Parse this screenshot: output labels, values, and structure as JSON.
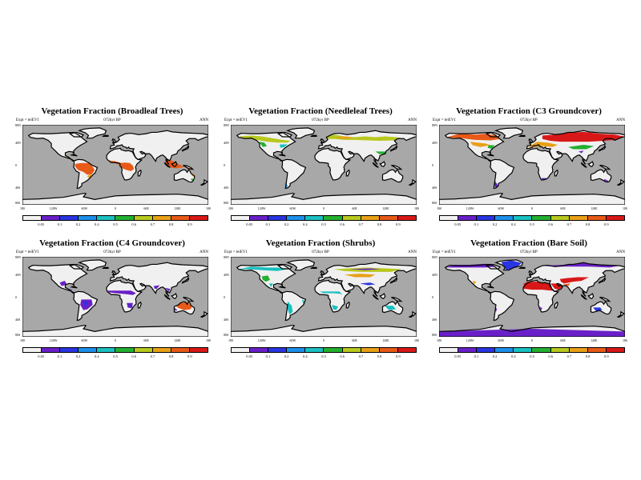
{
  "expt_label": "Expt = teiEV1",
  "sub_label": "072kyr BP",
  "season": "ANN",
  "lat_labels": [
    "80N",
    "40N",
    "0",
    "40S",
    "80S"
  ],
  "lon_labels": [
    "180",
    "120W",
    "60W",
    "0",
    "60E",
    "120E",
    "180"
  ],
  "colorbar": {
    "labels": [
      "0.05",
      "0.1",
      "0.2",
      "0.4",
      "0.5",
      "0.6",
      "0.7",
      "0.8",
      "0.9"
    ],
    "colors": [
      "#f2f2f2",
      "#6a20c8",
      "#2a34e0",
      "#1e8fe8",
      "#19c0bf",
      "#22b030",
      "#b8c81e",
      "#e8a018",
      "#e85a18",
      "#d81818"
    ]
  },
  "colors": {
    "ocean": "#a8a8a8",
    "land_empty": "#f0f0f0",
    "coast": "#000000"
  },
  "panels": [
    {
      "title": "Vegetation Fraction (Broadleaf Trees)",
      "variable": "broadleaf"
    },
    {
      "title": "Vegetation Fraction (Needleleaf Trees)",
      "variable": "needleleaf"
    },
    {
      "title": "Vegetation Fraction (C3 Groundcover)",
      "variable": "c3"
    },
    {
      "title": "Vegetation Fraction (C4 Groundcover)",
      "variable": "c4"
    },
    {
      "title": "Vegetation Fraction (Shrubs)",
      "variable": "shrubs"
    },
    {
      "title": "Vegetation Fraction (Bare Soil)",
      "variable": "bare"
    }
  ]
}
